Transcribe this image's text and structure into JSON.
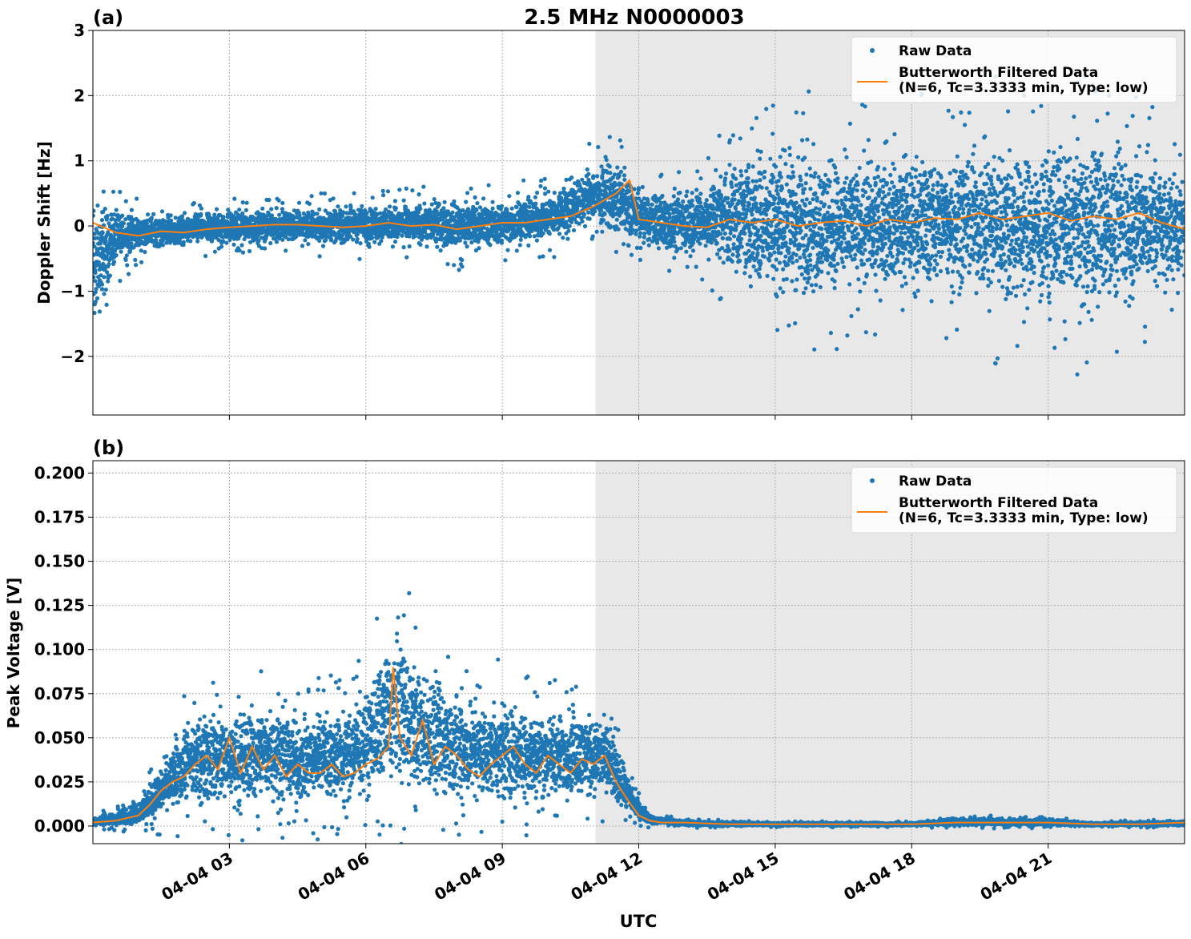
{
  "title": "2.5 MHz N0000003",
  "xlabel": "UTC",
  "colors": {
    "raw": "#1f77b4",
    "filtered": "#ff7f0e",
    "shade": "#e8e8e8",
    "grid": "#b0b0b0"
  },
  "chart_data": [
    {
      "panel_label": "(a)",
      "type": "scatter",
      "ylabel": "Doppler Shift [Hz]",
      "xlim_hours": [
        0,
        24
      ],
      "ylim": [
        -2.9,
        3
      ],
      "yticks": [
        -2,
        -1,
        0,
        1,
        2,
        3
      ],
      "ytick_labels": [
        "−2",
        "−1",
        "0",
        "1",
        "2",
        "3"
      ],
      "xticks_hours": [
        3,
        6,
        9,
        12,
        15,
        18,
        21
      ],
      "shaded_region_hours": [
        11.05,
        24
      ],
      "grid": true,
      "legend_position": "upper right",
      "series": [
        {
          "name": "Raw Data",
          "style": "dots",
          "envelope_hours": [
            0,
            0.5,
            1,
            2,
            3,
            4,
            5,
            6,
            7,
            8,
            9,
            10,
            10.5,
            11,
            11.5,
            12,
            12.5,
            13,
            13.5,
            14,
            15,
            16,
            17,
            18,
            19,
            20,
            21,
            22,
            23,
            24
          ],
          "envelope_low": [
            -1.8,
            -0.6,
            -0.4,
            -0.3,
            -0.3,
            -0.25,
            -0.3,
            -0.3,
            -0.3,
            -0.4,
            -0.35,
            -0.25,
            -0.15,
            0,
            -0.2,
            -0.3,
            -0.4,
            -0.5,
            -0.5,
            -0.9,
            -1.2,
            -1.2,
            -1.1,
            -1.1,
            -1.1,
            -1.3,
            -1.4,
            -1.4,
            -1.1,
            -0.9
          ],
          "envelope_high": [
            0.5,
            0.3,
            0.2,
            0.2,
            0.25,
            0.25,
            0.3,
            0.35,
            0.35,
            0.4,
            0.4,
            0.5,
            0.7,
            1.0,
            1.0,
            0.6,
            0.55,
            0.6,
            0.7,
            1.2,
            1.3,
            1.2,
            1.1,
            1.2,
            1.3,
            1.4,
            1.4,
            1.4,
            1.2,
            0.8
          ]
        },
        {
          "name": "Butterworth Filtered Data\n(N=6, Tc=3.3333 min, Type: low)",
          "style": "line",
          "x_hours": [
            0,
            0.5,
            1,
            1.5,
            2,
            2.5,
            3,
            3.5,
            4,
            4.5,
            5,
            5.5,
            6,
            6.5,
            7,
            7.5,
            8,
            8.5,
            9,
            9.5,
            10,
            10.5,
            11,
            11.5,
            11.8,
            12,
            12.5,
            13,
            13.5,
            14,
            14.5,
            15,
            15.5,
            16,
            16.5,
            17,
            17.5,
            18,
            18.5,
            19,
            19.5,
            20,
            20.5,
            21,
            21.5,
            22,
            22.5,
            23,
            23.5,
            24
          ],
          "y": [
            0.05,
            -0.1,
            -0.15,
            -0.08,
            -0.1,
            -0.05,
            -0.02,
            0.0,
            0.02,
            0.02,
            0.0,
            -0.02,
            0.0,
            0.05,
            0.0,
            0.02,
            -0.05,
            0.0,
            0.05,
            0.05,
            0.1,
            0.15,
            0.3,
            0.5,
            0.7,
            0.1,
            0.05,
            0.0,
            -0.02,
            0.1,
            0.05,
            0.1,
            0.0,
            0.05,
            0.08,
            0.0,
            0.1,
            0.05,
            0.12,
            0.1,
            0.2,
            0.1,
            0.15,
            0.2,
            0.08,
            0.15,
            0.1,
            0.2,
            0.05,
            -0.05
          ]
        }
      ]
    },
    {
      "panel_label": "(b)",
      "type": "scatter",
      "ylabel": "Peak Voltage [V]",
      "xlim_hours": [
        0,
        24
      ],
      "ylim": [
        -0.01,
        0.207
      ],
      "yticks": [
        0,
        0.025,
        0.05,
        0.075,
        0.1,
        0.125,
        0.15,
        0.175,
        0.2
      ],
      "ytick_labels": [
        "0.000",
        "0.025",
        "0.050",
        "0.075",
        "0.100",
        "0.125",
        "0.150",
        "0.175",
        "0.200"
      ],
      "xticks_hours": [
        3,
        6,
        9,
        12,
        15,
        18,
        21
      ],
      "xtick_labels": [
        "04-04 03",
        "04-04 06",
        "04-04 09",
        "04-04 12",
        "04-04 15",
        "04-04 18",
        "04-04 21"
      ],
      "shaded_region_hours": [
        11.05,
        24
      ],
      "grid": true,
      "legend_position": "upper right",
      "series": [
        {
          "name": "Raw Data",
          "style": "dots",
          "envelope_hours": [
            0,
            0.5,
            1,
            1.5,
            2,
            2.5,
            3,
            3.5,
            4,
            4.5,
            5,
            5.5,
            6,
            6.5,
            6.7,
            7,
            7.5,
            8,
            8.5,
            9,
            9.5,
            10,
            10.5,
            11,
            11.3,
            11.6,
            12,
            12.3,
            13,
            15,
            18,
            19,
            21,
            22,
            24
          ],
          "envelope_low": [
            0,
            0,
            0,
            0.005,
            0.008,
            0.01,
            0.008,
            0.01,
            0.012,
            0.01,
            0.012,
            0.012,
            0.015,
            0.015,
            0.015,
            0.015,
            0.012,
            0.01,
            0.012,
            0.01,
            0.012,
            0.012,
            0.015,
            0.015,
            0.015,
            0.01,
            0.003,
            0.001,
            0,
            0,
            0,
            0,
            0,
            0,
            0
          ],
          "envelope_high": [
            0.005,
            0.008,
            0.015,
            0.035,
            0.06,
            0.07,
            0.065,
            0.07,
            0.075,
            0.06,
            0.07,
            0.065,
            0.08,
            0.11,
            0.12,
            0.1,
            0.085,
            0.08,
            0.07,
            0.075,
            0.07,
            0.065,
            0.07,
            0.065,
            0.06,
            0.04,
            0.015,
            0.006,
            0.003,
            0.002,
            0.002,
            0.005,
            0.004,
            0.002,
            0.003
          ]
        },
        {
          "name": "Butterworth Filtered Data\n(N=6, Tc=3.3333 min, Type: low)",
          "style": "line",
          "x_hours": [
            0,
            0.5,
            1,
            1.25,
            1.5,
            1.75,
            2,
            2.25,
            2.5,
            2.75,
            3,
            3.25,
            3.5,
            3.75,
            4,
            4.25,
            4.5,
            4.75,
            5,
            5.25,
            5.5,
            5.75,
            6,
            6.25,
            6.5,
            6.6,
            6.75,
            7,
            7.25,
            7.5,
            7.75,
            8,
            8.25,
            8.5,
            8.75,
            9,
            9.25,
            9.5,
            9.75,
            10,
            10.25,
            10.5,
            10.75,
            11,
            11.25,
            11.5,
            11.75,
            12,
            12.25,
            12.5,
            13,
            14,
            15,
            16,
            17,
            18,
            19,
            20,
            21,
            22,
            23,
            24
          ],
          "y": [
            0.002,
            0.003,
            0.006,
            0.012,
            0.02,
            0.025,
            0.028,
            0.035,
            0.04,
            0.032,
            0.05,
            0.03,
            0.045,
            0.032,
            0.04,
            0.028,
            0.035,
            0.03,
            0.03,
            0.035,
            0.028,
            0.03,
            0.035,
            0.038,
            0.045,
            0.09,
            0.05,
            0.04,
            0.06,
            0.035,
            0.045,
            0.04,
            0.032,
            0.028,
            0.035,
            0.04,
            0.045,
            0.035,
            0.03,
            0.04,
            0.035,
            0.03,
            0.038,
            0.035,
            0.04,
            0.025,
            0.015,
            0.006,
            0.003,
            0.002,
            0.002,
            0.001,
            0.001,
            0.001,
            0.001,
            0.001,
            0.002,
            0.002,
            0.002,
            0.001,
            0.001,
            0.002
          ]
        }
      ]
    }
  ]
}
